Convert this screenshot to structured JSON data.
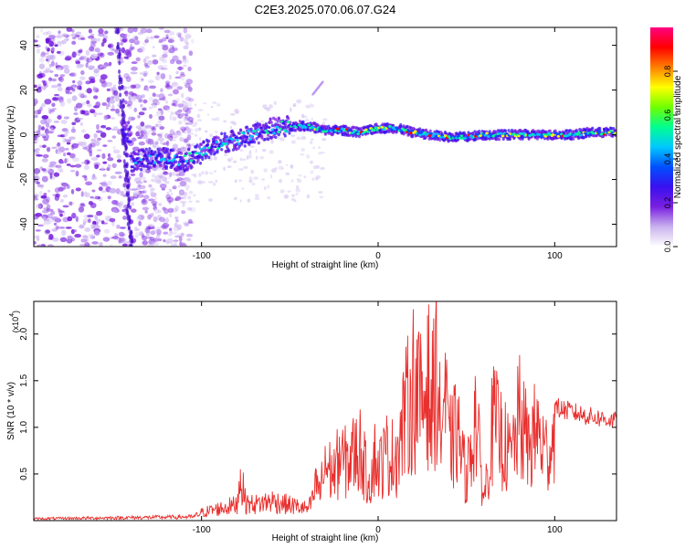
{
  "title": "C2E3.2025.070.06.07.G24",
  "chart_data": [
    {
      "type": "heatmap",
      "xlabel": "Height of straight line (km)",
      "ylabel": "Frequency (Hz)",
      "xlim": [
        -195,
        135
      ],
      "ylim": [
        -50,
        48
      ],
      "xticks": [
        -100,
        0,
        100
      ],
      "yticks": [
        -40,
        -20,
        0,
        20,
        40
      ],
      "colorbar": {
        "label": "Normalized spectral amplitude",
        "range": [
          0.0,
          1.0
        ],
        "ticks": [
          0.0,
          0.2,
          0.4,
          0.6,
          0.8
        ],
        "tick_labels": [
          "0.0",
          "0.2",
          "0.4",
          "0.6",
          "0.8"
        ],
        "colormap": [
          "#ffffff",
          "#c9b2ee",
          "#7a1fe0",
          "#3a10f0",
          "#0050ff",
          "#00c8ff",
          "#00ff90",
          "#70ff00",
          "#ffff00",
          "#ff8000",
          "#ff0000",
          "#ff0080"
        ]
      },
      "ridge": [
        {
          "x": -140,
          "y": -12
        },
        {
          "x": -125,
          "y": -10
        },
        {
          "x": -110,
          "y": -12
        },
        {
          "x": -100,
          "y": -8
        },
        {
          "x": -90,
          "y": -4
        },
        {
          "x": -80,
          "y": -2
        },
        {
          "x": -70,
          "y": 0
        },
        {
          "x": -60,
          "y": 3
        },
        {
          "x": -50,
          "y": 4
        },
        {
          "x": -40,
          "y": 4
        },
        {
          "x": -30,
          "y": 2
        },
        {
          "x": -20,
          "y": 2
        },
        {
          "x": -10,
          "y": 1
        },
        {
          "x": 0,
          "y": 3
        },
        {
          "x": 10,
          "y": 3
        },
        {
          "x": 20,
          "y": 1
        },
        {
          "x": 30,
          "y": 0
        },
        {
          "x": 40,
          "y": -1
        },
        {
          "x": 50,
          "y": -1
        },
        {
          "x": 60,
          "y": 0
        },
        {
          "x": 70,
          "y": 0
        },
        {
          "x": 80,
          "y": 0
        },
        {
          "x": 90,
          "y": 0
        },
        {
          "x": 100,
          "y": 0
        },
        {
          "x": 110,
          "y": 0
        },
        {
          "x": 120,
          "y": 1
        },
        {
          "x": 135,
          "y": 1
        }
      ]
    },
    {
      "type": "line",
      "xlabel": "Height of straight line (km)",
      "ylabel": "SNR (10 * v/v)",
      "y_multiplier_label": "(x10",
      "y_multiplier_exponent": "4",
      "xlim": [
        -195,
        135
      ],
      "ylim": [
        0,
        2.35
      ],
      "xticks": [
        -100,
        0,
        100
      ],
      "yticks": [
        0.5,
        1.0,
        1.5,
        2.0
      ],
      "ytick_labels": [
        "0.5",
        "1.0",
        "1.5",
        "2.0"
      ],
      "color": "#e8302e",
      "series": [
        {
          "x": [
            -195,
            -150,
            -105,
            -100,
            -90,
            -80,
            -78,
            -75,
            -70,
            -60,
            -55,
            -40,
            -37,
            -35,
            -33,
            -30,
            -25,
            -22,
            -18,
            -15,
            -10,
            -5,
            -2,
            0,
            5,
            10,
            15,
            20,
            22,
            25,
            28,
            30,
            33,
            35,
            38,
            40,
            45,
            50,
            55,
            60,
            65,
            70,
            75,
            80,
            85,
            90,
            95,
            100,
            110,
            120,
            135
          ],
          "y": [
            0.02,
            0.03,
            0.04,
            0.1,
            0.15,
            0.2,
            0.55,
            0.22,
            0.2,
            0.25,
            0.22,
            0.15,
            0.3,
            0.55,
            0.4,
            0.8,
            0.7,
            0.9,
            0.85,
            0.95,
            1.05,
            0.5,
            0.95,
            0.75,
            1.0,
            0.9,
            1.5,
            2.0,
            1.9,
            1.6,
            2.2,
            1.5,
            2.35,
            1.4,
            1.8,
            1.1,
            1.3,
            0.6,
            1.55,
            0.3,
            1.45,
            1.2,
            0.9,
            1.5,
            1.1,
            1.3,
            1.0,
            1.25,
            1.2,
            1.15,
            1.1
          ]
        }
      ]
    }
  ]
}
